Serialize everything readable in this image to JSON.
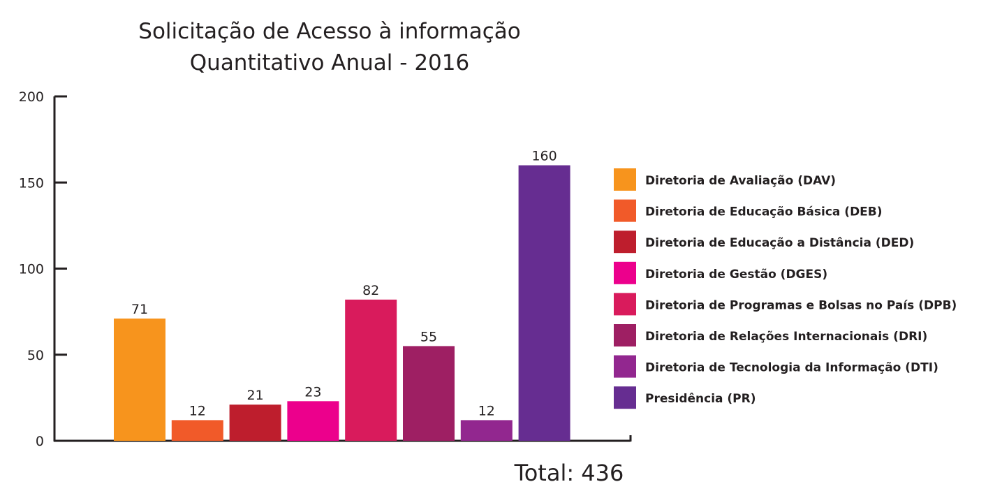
{
  "chart_data": {
    "type": "bar",
    "title": [
      "Solicitação de Acesso à informação",
      "Quantitativo Anual - 2016"
    ],
    "xlabel": "",
    "ylabel": "",
    "ylim": [
      0,
      200
    ],
    "yticks": [
      0,
      50,
      100,
      150,
      200
    ],
    "grid": false,
    "legend_position": "right",
    "categories": [
      "Diretoria de Avaliação (DAV)",
      "Diretoria de Educação Básica (DEB)",
      "Diretoria de Educação a Distância (DED)",
      "Diretoria de Gestão (DGES)",
      "Diretoria de Programas e Bolsas no País (DPB)",
      "Diretoria de Relações Internacionais (DRI)",
      "Diretoria de Tecnologia da Informação (DTI)",
      "Presidência (PR)"
    ],
    "values": [
      71,
      12,
      21,
      23,
      82,
      55,
      12,
      160
    ],
    "colors": [
      "#f7941d",
      "#f15a29",
      "#be1e2d",
      "#ec008c",
      "#d91b5c",
      "#9e1f63",
      "#92278f",
      "#662d91"
    ],
    "total_label": "Total: 436"
  }
}
